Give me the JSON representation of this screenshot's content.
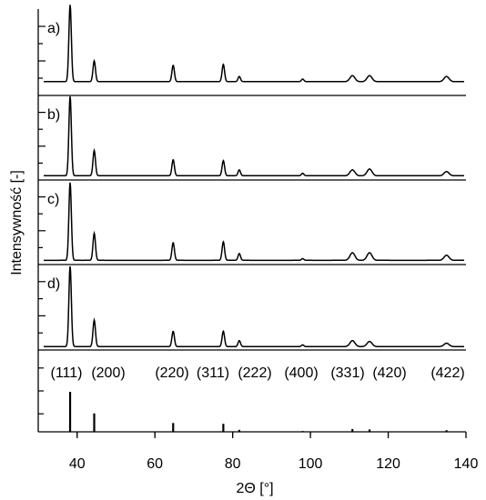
{
  "chart_data": {
    "type": "line",
    "title": "",
    "xlabel": "2Θ [°]",
    "ylabel": "Intensywność [-]",
    "xlim": [
      30,
      140
    ],
    "xticks": [
      40,
      60,
      80,
      100,
      120,
      140
    ],
    "color": "#000000",
    "panels": [
      {
        "label": "a)",
        "baseline_offset": 0.16,
        "peaks": [
          {
            "x": 38.2,
            "y": 0.89
          },
          {
            "x": 44.4,
            "y": 0.24
          },
          {
            "x": 64.7,
            "y": 0.19
          },
          {
            "x": 77.6,
            "y": 0.2
          },
          {
            "x": 81.7,
            "y": 0.06
          },
          {
            "x": 98.0,
            "y": 0.03
          },
          {
            "x": 110.8,
            "y": 0.07
          },
          {
            "x": 115.2,
            "y": 0.07
          },
          {
            "x": 135.0,
            "y": 0.06
          }
        ]
      },
      {
        "label": "b)",
        "baseline_offset": 0.05,
        "peaks": [
          {
            "x": 38.2,
            "y": 0.94
          },
          {
            "x": 44.4,
            "y": 0.3
          },
          {
            "x": 64.7,
            "y": 0.19
          },
          {
            "x": 77.6,
            "y": 0.18
          },
          {
            "x": 81.7,
            "y": 0.07
          },
          {
            "x": 98.0,
            "y": 0.03
          },
          {
            "x": 110.8,
            "y": 0.07
          },
          {
            "x": 115.2,
            "y": 0.08
          },
          {
            "x": 135.0,
            "y": 0.05
          }
        ]
      },
      {
        "label": "c)",
        "baseline_offset": 0.05,
        "peaks": [
          {
            "x": 38.2,
            "y": 0.92
          },
          {
            "x": 44.4,
            "y": 0.32
          },
          {
            "x": 64.7,
            "y": 0.21
          },
          {
            "x": 77.6,
            "y": 0.22
          },
          {
            "x": 81.7,
            "y": 0.08
          },
          {
            "x": 98.0,
            "y": 0.02
          },
          {
            "x": 110.8,
            "y": 0.09
          },
          {
            "x": 115.2,
            "y": 0.09
          },
          {
            "x": 135.0,
            "y": 0.06
          }
        ]
      },
      {
        "label": "d)",
        "baseline_offset": 0.04,
        "peaks": [
          {
            "x": 38.2,
            "y": 0.94
          },
          {
            "x": 44.4,
            "y": 0.31
          },
          {
            "x": 64.7,
            "y": 0.18
          },
          {
            "x": 77.6,
            "y": 0.18
          },
          {
            "x": 81.7,
            "y": 0.07
          },
          {
            "x": 98.0,
            "y": 0.02
          },
          {
            "x": 110.8,
            "y": 0.07
          },
          {
            "x": 115.2,
            "y": 0.06
          },
          {
            "x": 135.0,
            "y": 0.04
          }
        ]
      }
    ],
    "reference": {
      "hkl_labels": [
        {
          "text": "(111)",
          "x": 38.2
        },
        {
          "text": "(200)",
          "x": 44.4
        },
        {
          "text": "(220)",
          "x": 64.7
        },
        {
          "text": "(311)",
          "x": 77.6
        },
        {
          "text": "(222)",
          "x": 81.7
        },
        {
          "text": "(400)",
          "x": 98.0
        },
        {
          "text": "(331)",
          "x": 110.8
        },
        {
          "text": "(420)",
          "x": 115.2
        },
        {
          "text": "(422)",
          "x": 135.0
        }
      ],
      "sticks": [
        {
          "x": 38.2,
          "y": 1.0
        },
        {
          "x": 44.4,
          "y": 0.46
        },
        {
          "x": 64.7,
          "y": 0.22
        },
        {
          "x": 77.6,
          "y": 0.2
        },
        {
          "x": 81.7,
          "y": 0.05
        },
        {
          "x": 98.0,
          "y": 0.02
        },
        {
          "x": 110.8,
          "y": 0.07
        },
        {
          "x": 115.2,
          "y": 0.06
        },
        {
          "x": 135.0,
          "y": 0.04
        }
      ]
    }
  }
}
